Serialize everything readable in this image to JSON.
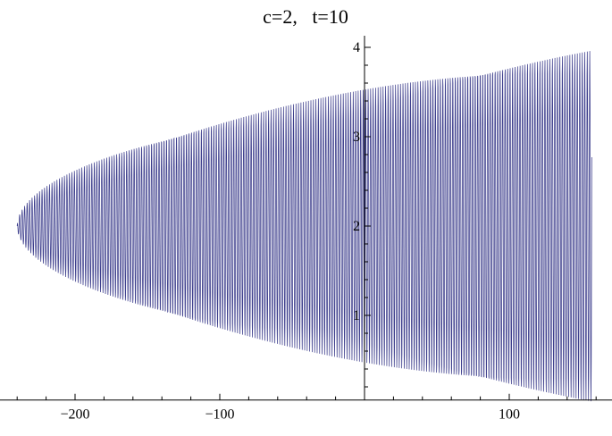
{
  "chart_data": {
    "type": "line",
    "title": "c=2,   t=10",
    "xlabel": "",
    "ylabel": "",
    "xlim": [
      -242,
      160
    ],
    "ylim": [
      0.05,
      4.1
    ],
    "x_ticks": [
      {
        "value": -200,
        "label": "−200"
      },
      {
        "value": -100,
        "label": "−100"
      },
      {
        "value": 100,
        "label": "100"
      }
    ],
    "y_ticks": [
      {
        "value": 1,
        "label": "1"
      },
      {
        "value": 2,
        "label": "2"
      },
      {
        "value": 3,
        "label": "3"
      },
      {
        "value": 4,
        "label": "4"
      }
    ],
    "grid": false,
    "series": [
      {
        "color": "#3c3d8c",
        "description_shape": "rapid oscillation between a lower and upper envelope that meet at y=2 near x=-240 and widen to roughly 0 and 4 at x=157",
        "x_start": -240,
        "x_end": 157,
        "center_value": 2,
        "envelope_half_width_at_end": 1.97,
        "oscillation_period": 1.72
      }
    ]
  }
}
